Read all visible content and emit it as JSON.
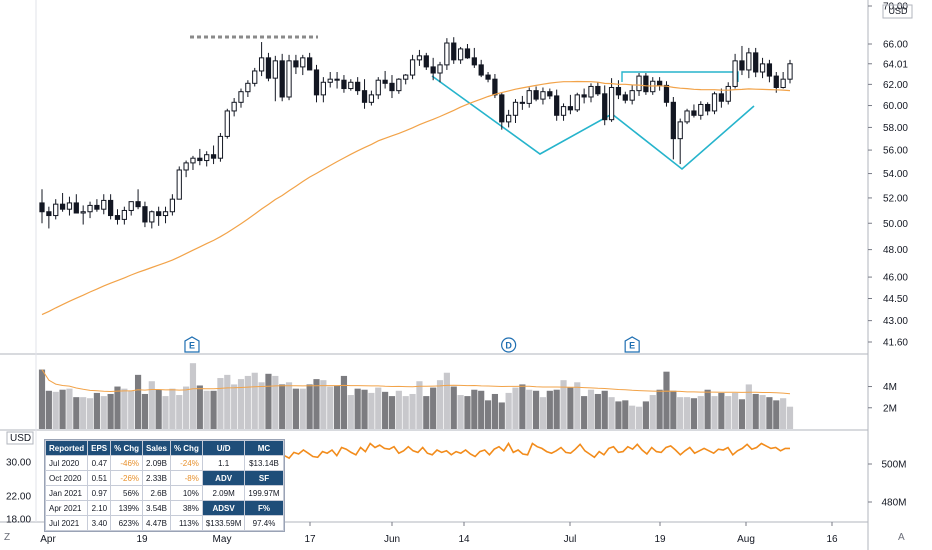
{
  "chart_data": {
    "type": "candlestick",
    "currency": "USD",
    "price_axis": {
      "ticks": [
        41.6,
        43.0,
        44.5,
        46.0,
        48.0,
        50.0,
        52.0,
        54.0,
        56.0,
        58.0,
        60.0,
        62.0,
        64.01,
        66.0,
        70.0
      ],
      "current_price": 64.01,
      "scale": "log"
    },
    "time_axis": {
      "labels": [
        "Apr",
        "19",
        "May",
        "17",
        "Jun",
        "14",
        "Jul",
        "19",
        "Aug",
        "16"
      ]
    },
    "candles": [
      {
        "o": 51.6,
        "h": 52.7,
        "l": 50.0,
        "c": 50.9
      },
      {
        "o": 50.9,
        "h": 51.3,
        "l": 49.6,
        "c": 50.6
      },
      {
        "o": 50.6,
        "h": 51.9,
        "l": 50.3,
        "c": 51.5
      },
      {
        "o": 51.5,
        "h": 52.4,
        "l": 50.9,
        "c": 51.1
      },
      {
        "o": 51.1,
        "h": 52.1,
        "l": 50.6,
        "c": 51.6
      },
      {
        "o": 51.6,
        "h": 52.3,
        "l": 50.9,
        "c": 50.8
      },
      {
        "o": 50.8,
        "h": 51.4,
        "l": 49.9,
        "c": 50.9
      },
      {
        "o": 50.9,
        "h": 51.7,
        "l": 50.4,
        "c": 51.4
      },
      {
        "o": 51.4,
        "h": 51.9,
        "l": 50.9,
        "c": 51.1
      },
      {
        "o": 51.1,
        "h": 52.3,
        "l": 50.7,
        "c": 51.8
      },
      {
        "o": 51.8,
        "h": 52.3,
        "l": 50.3,
        "c": 50.6
      },
      {
        "o": 50.6,
        "h": 51.1,
        "l": 49.9,
        "c": 50.3
      },
      {
        "o": 50.3,
        "h": 51.3,
        "l": 49.9,
        "c": 51.0
      },
      {
        "o": 51.0,
        "h": 51.7,
        "l": 50.6,
        "c": 51.7
      },
      {
        "o": 51.7,
        "h": 52.7,
        "l": 51.1,
        "c": 51.3
      },
      {
        "o": 51.3,
        "h": 51.7,
        "l": 49.7,
        "c": 50.1
      },
      {
        "o": 50.1,
        "h": 51.0,
        "l": 49.6,
        "c": 50.9
      },
      {
        "o": 50.9,
        "h": 51.3,
        "l": 49.8,
        "c": 50.6
      },
      {
        "o": 50.6,
        "h": 51.3,
        "l": 50.0,
        "c": 50.9
      },
      {
        "o": 50.9,
        "h": 52.3,
        "l": 50.6,
        "c": 51.9
      },
      {
        "o": 51.9,
        "h": 54.6,
        "l": 51.9,
        "c": 54.3
      },
      {
        "o": 54.3,
        "h": 55.1,
        "l": 53.7,
        "c": 54.9
      },
      {
        "o": 54.9,
        "h": 55.5,
        "l": 54.3,
        "c": 55.3
      },
      {
        "o": 55.3,
        "h": 56.1,
        "l": 54.7,
        "c": 55.1
      },
      {
        "o": 55.1,
        "h": 55.9,
        "l": 54.6,
        "c": 55.6
      },
      {
        "o": 55.6,
        "h": 56.4,
        "l": 54.8,
        "c": 55.3
      },
      {
        "o": 55.3,
        "h": 57.5,
        "l": 55.0,
        "c": 57.2
      },
      {
        "o": 57.2,
        "h": 59.7,
        "l": 57.0,
        "c": 59.5
      },
      {
        "o": 59.5,
        "h": 60.7,
        "l": 59.0,
        "c": 60.3
      },
      {
        "o": 60.3,
        "h": 61.6,
        "l": 59.8,
        "c": 61.3
      },
      {
        "o": 61.3,
        "h": 62.4,
        "l": 60.8,
        "c": 62.1
      },
      {
        "o": 62.1,
        "h": 63.6,
        "l": 61.8,
        "c": 63.3
      },
      {
        "o": 63.3,
        "h": 66.2,
        "l": 62.8,
        "c": 64.6
      },
      {
        "o": 64.6,
        "h": 65.1,
        "l": 62.3,
        "c": 62.6
      },
      {
        "o": 62.6,
        "h": 64.8,
        "l": 60.4,
        "c": 64.3
      },
      {
        "o": 64.3,
        "h": 65.0,
        "l": 60.4,
        "c": 60.8
      },
      {
        "o": 60.8,
        "h": 64.9,
        "l": 60.5,
        "c": 64.3
      },
      {
        "o": 64.3,
        "h": 64.9,
        "l": 63.0,
        "c": 63.7
      },
      {
        "o": 63.7,
        "h": 64.9,
        "l": 62.9,
        "c": 64.6
      },
      {
        "o": 64.6,
        "h": 65.1,
        "l": 63.5,
        "c": 63.4
      },
      {
        "o": 63.4,
        "h": 63.9,
        "l": 60.3,
        "c": 61.0
      },
      {
        "o": 61.0,
        "h": 62.7,
        "l": 60.3,
        "c": 62.2
      },
      {
        "o": 62.2,
        "h": 63.2,
        "l": 61.7,
        "c": 62.5
      },
      {
        "o": 62.5,
        "h": 63.2,
        "l": 61.6,
        "c": 62.4
      },
      {
        "o": 62.4,
        "h": 62.9,
        "l": 61.2,
        "c": 61.6
      },
      {
        "o": 61.6,
        "h": 62.5,
        "l": 61.4,
        "c": 62.2
      },
      {
        "o": 62.2,
        "h": 62.7,
        "l": 61.0,
        "c": 61.4
      },
      {
        "o": 61.4,
        "h": 62.5,
        "l": 59.7,
        "c": 60.3
      },
      {
        "o": 60.3,
        "h": 61.4,
        "l": 60.0,
        "c": 61.0
      },
      {
        "o": 61.0,
        "h": 62.7,
        "l": 60.6,
        "c": 62.4
      },
      {
        "o": 62.4,
        "h": 63.3,
        "l": 61.6,
        "c": 62.1
      },
      {
        "o": 62.1,
        "h": 62.9,
        "l": 60.7,
        "c": 61.4
      },
      {
        "o": 61.4,
        "h": 62.6,
        "l": 61.1,
        "c": 62.5
      },
      {
        "o": 62.5,
        "h": 63.0,
        "l": 62.0,
        "c": 62.9
      },
      {
        "o": 62.9,
        "h": 64.9,
        "l": 62.5,
        "c": 64.4
      },
      {
        "o": 64.4,
        "h": 65.4,
        "l": 63.8,
        "c": 64.8
      },
      {
        "o": 64.8,
        "h": 65.1,
        "l": 63.4,
        "c": 63.7
      },
      {
        "o": 63.7,
        "h": 64.6,
        "l": 62.4,
        "c": 63.1
      },
      {
        "o": 63.1,
        "h": 64.2,
        "l": 62.2,
        "c": 63.9
      },
      {
        "o": 63.9,
        "h": 66.6,
        "l": 63.4,
        "c": 66.1
      },
      {
        "o": 66.1,
        "h": 66.7,
        "l": 64.0,
        "c": 64.4
      },
      {
        "o": 64.4,
        "h": 65.7,
        "l": 64.0,
        "c": 65.5
      },
      {
        "o": 65.5,
        "h": 66.0,
        "l": 64.5,
        "c": 64.6
      },
      {
        "o": 64.6,
        "h": 65.6,
        "l": 63.6,
        "c": 63.9
      },
      {
        "o": 63.9,
        "h": 64.4,
        "l": 62.7,
        "c": 62.9
      },
      {
        "o": 62.9,
        "h": 63.2,
        "l": 62.2,
        "c": 62.5
      },
      {
        "o": 62.5,
        "h": 63.0,
        "l": 60.7,
        "c": 61.0
      },
      {
        "o": 61.0,
        "h": 61.2,
        "l": 57.8,
        "c": 58.5
      },
      {
        "o": 58.5,
        "h": 59.6,
        "l": 58.0,
        "c": 59.1
      },
      {
        "o": 59.1,
        "h": 60.6,
        "l": 58.4,
        "c": 60.3
      },
      {
        "o": 60.3,
        "h": 60.9,
        "l": 59.6,
        "c": 60.2
      },
      {
        "o": 60.2,
        "h": 61.7,
        "l": 59.8,
        "c": 61.4
      },
      {
        "o": 61.4,
        "h": 61.8,
        "l": 60.4,
        "c": 60.6
      },
      {
        "o": 60.6,
        "h": 61.7,
        "l": 60.1,
        "c": 61.3
      },
      {
        "o": 61.3,
        "h": 61.6,
        "l": 60.6,
        "c": 60.9
      },
      {
        "o": 60.9,
        "h": 61.5,
        "l": 58.6,
        "c": 59.1
      },
      {
        "o": 59.1,
        "h": 60.2,
        "l": 58.6,
        "c": 59.9
      },
      {
        "o": 59.9,
        "h": 61.0,
        "l": 59.2,
        "c": 59.6
      },
      {
        "o": 59.6,
        "h": 61.2,
        "l": 59.4,
        "c": 61.0
      },
      {
        "o": 61.0,
        "h": 61.6,
        "l": 60.2,
        "c": 60.8
      },
      {
        "o": 60.8,
        "h": 62.1,
        "l": 60.3,
        "c": 61.8
      },
      {
        "o": 61.8,
        "h": 62.2,
        "l": 60.9,
        "c": 61.1
      },
      {
        "o": 61.1,
        "h": 61.9,
        "l": 58.2,
        "c": 58.7
      },
      {
        "o": 58.7,
        "h": 62.6,
        "l": 58.5,
        "c": 61.7
      },
      {
        "o": 61.7,
        "h": 62.4,
        "l": 60.6,
        "c": 61.0
      },
      {
        "o": 61.0,
        "h": 61.3,
        "l": 60.2,
        "c": 60.5
      },
      {
        "o": 60.5,
        "h": 61.9,
        "l": 60.1,
        "c": 61.4
      },
      {
        "o": 61.4,
        "h": 63.1,
        "l": 60.9,
        "c": 62.8
      },
      {
        "o": 62.8,
        "h": 63.1,
        "l": 61.0,
        "c": 61.3
      },
      {
        "o": 61.3,
        "h": 62.7,
        "l": 61.0,
        "c": 62.3
      },
      {
        "o": 62.3,
        "h": 62.7,
        "l": 61.4,
        "c": 61.9
      },
      {
        "o": 61.9,
        "h": 62.3,
        "l": 59.9,
        "c": 60.3
      },
      {
        "o": 60.3,
        "h": 60.8,
        "l": 55.2,
        "c": 57.0
      },
      {
        "o": 57.0,
        "h": 58.8,
        "l": 54.8,
        "c": 58.5
      },
      {
        "o": 58.5,
        "h": 59.7,
        "l": 58.3,
        "c": 59.5
      },
      {
        "o": 59.5,
        "h": 60.1,
        "l": 58.9,
        "c": 59.1
      },
      {
        "o": 59.1,
        "h": 60.4,
        "l": 58.7,
        "c": 60.1
      },
      {
        "o": 60.1,
        "h": 60.3,
        "l": 59.1,
        "c": 59.5
      },
      {
        "o": 59.5,
        "h": 61.3,
        "l": 59.2,
        "c": 61.1
      },
      {
        "o": 61.1,
        "h": 61.6,
        "l": 59.8,
        "c": 60.4
      },
      {
        "o": 60.4,
        "h": 62.2,
        "l": 60.1,
        "c": 61.8
      },
      {
        "o": 61.8,
        "h": 65.0,
        "l": 61.6,
        "c": 64.3
      },
      {
        "o": 64.3,
        "h": 65.8,
        "l": 62.9,
        "c": 63.4
      },
      {
        "o": 63.4,
        "h": 65.6,
        "l": 62.6,
        "c": 65.1
      },
      {
        "o": 65.1,
        "h": 65.6,
        "l": 62.7,
        "c": 63.2
      },
      {
        "o": 63.2,
        "h": 64.6,
        "l": 62.6,
        "c": 64.0
      },
      {
        "o": 64.0,
        "h": 64.4,
        "l": 62.2,
        "c": 62.8
      },
      {
        "o": 62.8,
        "h": 63.2,
        "l": 61.2,
        "c": 61.7
      },
      {
        "o": 61.7,
        "h": 63.2,
        "l": 61.6,
        "c": 62.5
      },
      {
        "o": 62.5,
        "h": 64.4,
        "l": 62.1,
        "c": 64.01
      }
    ],
    "volume_axis": {
      "ticks": [
        "4M",
        "2M"
      ]
    },
    "volumes": [
      5.6,
      3.6,
      3.5,
      3.7,
      3.8,
      3.0,
      3.0,
      2.9,
      3.4,
      3.1,
      3.3,
      4.0,
      3.8,
      3.6,
      5.1,
      3.3,
      4.5,
      3.7,
      3.1,
      3.8,
      3.2,
      4.0,
      6.2,
      4.1,
      3.6,
      3.6,
      4.8,
      5.1,
      4.2,
      4.7,
      5.0,
      5.3,
      4.4,
      5.2,
      5.0,
      4.2,
      4.4,
      3.8,
      3.8,
      4.2,
      4.7,
      4.6,
      4.0,
      4.1,
      5.0,
      3.2,
      3.8,
      3.7,
      3.4,
      3.9,
      3.5,
      3.1,
      3.6,
      3.1,
      3.3,
      4.5,
      3.1,
      3.9,
      4.6,
      5.3,
      4.0,
      3.2,
      3.1,
      3.7,
      3.6,
      2.7,
      3.3,
      2.5,
      3.4,
      3.9,
      4.2,
      3.7,
      3.6,
      3.0,
      3.6,
      3.7,
      4.6,
      3.9,
      4.4,
      3.1,
      3.7,
      3.3,
      3.6,
      3.0,
      2.6,
      2.7,
      2.2,
      2.1,
      2.6,
      3.2,
      3.7,
      5.4,
      3.6,
      3.0,
      3.0,
      2.9,
      3.1,
      3.7,
      3.1,
      3.4,
      3.1,
      3.4,
      2.8,
      4.2,
      3.3,
      3.2,
      3.0,
      2.7,
      2.9,
      2.1
    ],
    "rs_axis": {
      "left_ticks": [
        "30.00",
        "22.00",
        "18.00"
      ],
      "right_ticks": [
        "500M",
        "480M"
      ],
      "left_unit": "USD"
    },
    "rs_line": [
      31.1,
      31.4,
      31.2,
      31.9,
      31.6,
      32.3,
      32.1,
      32.6,
      32.2,
      31.8,
      31.7,
      32.4,
      32.2,
      32.6,
      31.9,
      32.9,
      32.7,
      32.3,
      32.0,
      32.9,
      32.4,
      33.4,
      32.9,
      33.2,
      32.8,
      32.7,
      33.0,
      32.2,
      32.5,
      33.0,
      32.5,
      32.3,
      32.9,
      32.2,
      32.0,
      32.6,
      32.3,
      32.5,
      32.0,
      32.4,
      32.2,
      32.6,
      32.1,
      31.8,
      32.4,
      32.6,
      32.0,
      32.7,
      33.0,
      32.5,
      33.4,
      32.3,
      32.6,
      32.1,
      32.0,
      33.4,
      33.0,
      32.8,
      32.4,
      32.2,
      32.5,
      32.9,
      32.3,
      32.2,
      32.7,
      33.3,
      32.5,
      32.1,
      31.7,
      32.4,
      32.0,
      32.8,
      33.0,
      32.3,
      32.4,
      33.0,
      32.7,
      33.3,
      32.6,
      32.1,
      32.9,
      32.4,
      32.3,
      32.9,
      33.1,
      32.6,
      32.0,
      32.5,
      32.9,
      32.2,
      32.5,
      32.8,
      32.5,
      32.2,
      32.7,
      32.6,
      32.9,
      32.0,
      32.5,
      32.8,
      33.3,
      32.7,
      32.9,
      33.4,
      33.1,
      32.8,
      32.9,
      32.5,
      32.8,
      32.8
    ],
    "markers": [
      {
        "label": "E",
        "index": 22
      },
      {
        "label": "D",
        "index": 68
      },
      {
        "label": "E",
        "index": 86
      }
    ],
    "table": {
      "headers": [
        "Reported",
        "EPS",
        "% Chg",
        "Sales",
        "% Chg",
        "U/D",
        "MC"
      ],
      "rows": [
        [
          "Jul 2020",
          "0.47",
          "-46%",
          "2.09B",
          "-24%",
          "1.1",
          "$13.14B"
        ],
        [
          "Oct 2020",
          "0.51",
          "-26%",
          "2.33B",
          "-8%",
          "ADV",
          "SF"
        ],
        [
          "Jan 2021",
          "0.97",
          "56%",
          "2.6B",
          "10%",
          "2.09M",
          "199.97M"
        ],
        [
          "Apr 2021",
          "2.10",
          "139%",
          "3.54B",
          "38%",
          "ADSV",
          "F%"
        ],
        [
          "Jul 2021",
          "3.40",
          "623%",
          "4.47B",
          "113%",
          "$133.59M",
          "97.4%"
        ]
      ]
    },
    "corners": {
      "bottom_left": "Z",
      "bottom_right": "A"
    },
    "colors": {
      "volume_up": "#c8c8cc",
      "volume_down": "#7c7c80",
      "ma": "#f2a349",
      "pattern": "#26b4cc",
      "rs": "#f28c1c",
      "markers": "#1f6fb2",
      "table_header": "#1f4e79"
    }
  }
}
